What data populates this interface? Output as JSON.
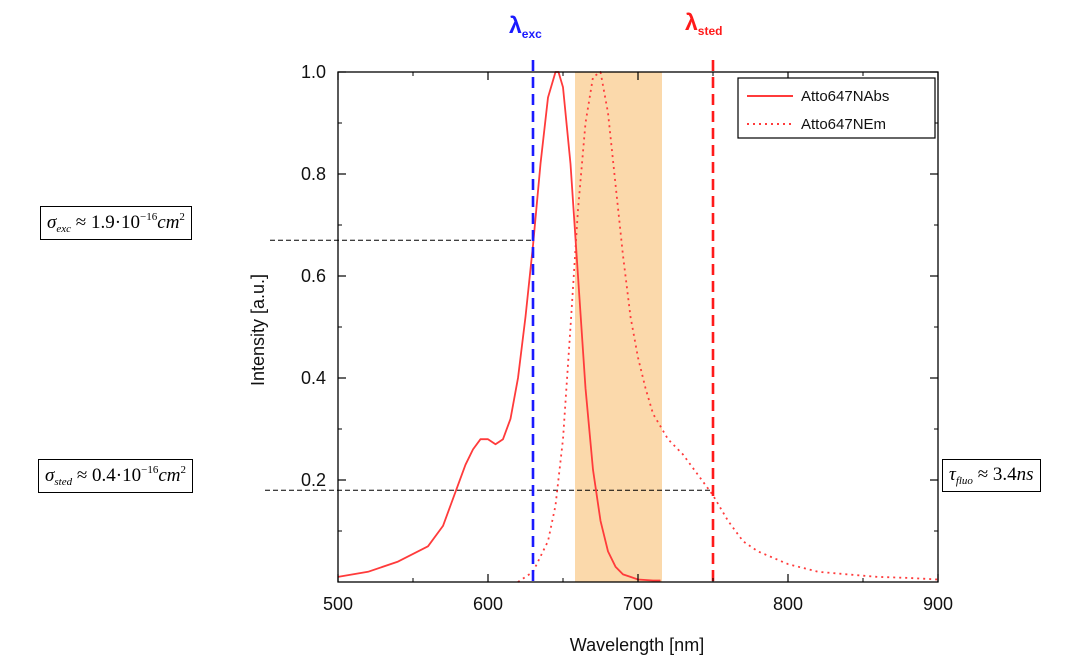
{
  "chart_data": {
    "type": "line",
    "xlabel": "Wavelength [nm]",
    "ylabel": "Intensity [a.u.]",
    "xlim": [
      500,
      900
    ],
    "ylim": [
      0,
      1.0
    ],
    "xticks": [
      500,
      600,
      700,
      800,
      900
    ],
    "yticks": [
      0.2,
      0.4,
      0.6,
      0.8,
      1.0
    ],
    "x_tick_labels": [
      "500",
      "600",
      "700",
      "800",
      "900"
    ],
    "y_tick_labels": [
      "0.2",
      "0.4",
      "0.6",
      "0.8",
      "1.0"
    ],
    "legend_position": "top-right",
    "series": [
      {
        "name": "Atto647NAbs",
        "style": "solid",
        "color": "#ff3b3b",
        "x": [
          500,
          520,
          540,
          560,
          570,
          575,
          580,
          585,
          590,
          595,
          600,
          605,
          610,
          615,
          620,
          625,
          630,
          635,
          640,
          645,
          647,
          650,
          655,
          660,
          665,
          670,
          675,
          680,
          685,
          690,
          695,
          700,
          705,
          710,
          715
        ],
        "y": [
          0.01,
          0.02,
          0.04,
          0.07,
          0.11,
          0.15,
          0.19,
          0.23,
          0.26,
          0.28,
          0.28,
          0.27,
          0.28,
          0.32,
          0.4,
          0.52,
          0.66,
          0.82,
          0.95,
          1.0,
          1.0,
          0.97,
          0.82,
          0.6,
          0.38,
          0.22,
          0.12,
          0.06,
          0.03,
          0.015,
          0.01,
          0.005,
          0.004,
          0.003,
          0.003
        ]
      },
      {
        "name": "Atto647NEm",
        "style": "dotted",
        "color": "#ff3b3b",
        "x": [
          620,
          630,
          640,
          645,
          650,
          655,
          660,
          665,
          670,
          675,
          680,
          685,
          690,
          695,
          700,
          705,
          710,
          720,
          730,
          740,
          750,
          760,
          770,
          780,
          800,
          820,
          840,
          860,
          880,
          900
        ],
        "y": [
          0.0,
          0.02,
          0.08,
          0.15,
          0.28,
          0.5,
          0.73,
          0.9,
          0.99,
          1.0,
          0.92,
          0.78,
          0.64,
          0.52,
          0.44,
          0.38,
          0.33,
          0.28,
          0.25,
          0.21,
          0.17,
          0.12,
          0.08,
          0.06,
          0.035,
          0.02,
          0.015,
          0.01,
          0.008,
          0.005
        ]
      }
    ],
    "band": {
      "x_range": [
        658,
        716
      ],
      "color": "#fbd9ab"
    },
    "vlines": [
      {
        "x": 630,
        "color": "#1a1aff",
        "style": "dashed"
      },
      {
        "x": 750,
        "color": "#ff1a1a",
        "style": "dashed"
      }
    ],
    "hlines": [
      {
        "y": 0.67,
        "x_from": 500,
        "x_to": 630,
        "style": "dashed"
      },
      {
        "y": 0.18,
        "x_from": 500,
        "x_to": 750,
        "style": "dashed"
      }
    ]
  },
  "labels": {
    "lambda_exc_main": "λ",
    "lambda_exc_sub": "exc",
    "lambda_sted_main": "λ",
    "lambda_sted_sub": "sted",
    "sigma_exc": {
      "symbol": "σ",
      "sub": "exc",
      "approx": "≈ 1.9·10",
      "exp": "−16",
      "unit": "cm",
      "unit_exp": "2"
    },
    "sigma_sted": {
      "symbol": "σ",
      "sub": "sted",
      "approx": "≈ 0.4·10",
      "exp": "−16",
      "unit": "cm",
      "unit_exp": "2"
    },
    "tau_fluo": {
      "symbol": "τ",
      "sub": "fluo",
      "approx": "≈ 3.4",
      "unit": "ns"
    }
  }
}
